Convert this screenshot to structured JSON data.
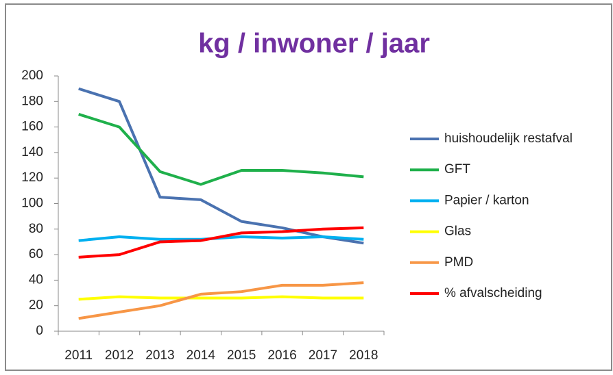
{
  "chart_data": {
    "type": "line",
    "title": "kg / inwoner / jaar",
    "categories": [
      "2011",
      "2012",
      "2013",
      "2014",
      "2015",
      "2016",
      "2017",
      "2018"
    ],
    "series": [
      {
        "name": "huishoudelijk restafval",
        "color": "#4a72b0",
        "values": [
          190,
          180,
          105,
          103,
          86,
          81,
          74,
          69
        ]
      },
      {
        "name": "GFT",
        "color": "#1fb04b",
        "values": [
          170,
          160,
          125,
          115,
          126,
          126,
          124,
          121
        ]
      },
      {
        "name": "Papier / karton",
        "color": "#00b0f0",
        "values": [
          71,
          74,
          72,
          72,
          74,
          73,
          74,
          72
        ]
      },
      {
        "name": "Glas",
        "color": "#ffff00",
        "values": [
          25,
          27,
          26,
          26,
          26,
          27,
          26,
          26
        ]
      },
      {
        "name": "PMD",
        "color": "#f79646",
        "values": [
          10,
          15,
          20,
          29,
          31,
          36,
          36,
          38
        ]
      },
      {
        "name": "% afvalscheiding",
        "color": "#ff0000",
        "values": [
          58,
          60,
          70,
          71,
          77,
          78,
          80,
          81
        ]
      }
    ],
    "ylim": [
      0,
      200
    ],
    "yticks": [
      0,
      20,
      40,
      60,
      80,
      100,
      120,
      140,
      160,
      180,
      200
    ],
    "grid": false,
    "legend": "right"
  }
}
